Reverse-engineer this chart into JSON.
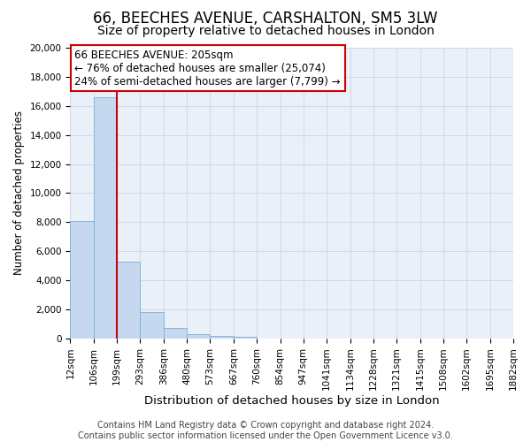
{
  "title": "66, BEECHES AVENUE, CARSHALTON, SM5 3LW",
  "subtitle": "Size of property relative to detached houses in London",
  "xlabel": "Distribution of detached houses by size in London",
  "ylabel": "Number of detached properties",
  "bar_values": [
    8100,
    16600,
    5300,
    1850,
    750,
    280,
    180,
    130,
    0,
    0,
    0,
    0,
    0,
    0,
    0,
    0,
    0,
    0,
    0
  ],
  "bin_labels": [
    "12sqm",
    "106sqm",
    "199sqm",
    "293sqm",
    "386sqm",
    "480sqm",
    "573sqm",
    "667sqm",
    "760sqm",
    "854sqm",
    "947sqm",
    "1041sqm",
    "1134sqm",
    "1228sqm",
    "1321sqm",
    "1415sqm",
    "1508sqm",
    "1602sqm",
    "1695sqm",
    "1882sqm"
  ],
  "bar_color": "#c5d8f0",
  "bar_edge_color": "#7aafd4",
  "vline_color": "#cc0000",
  "annotation_line1": "66 BEECHES AVENUE: 205sqm",
  "annotation_line2": "← 76% of detached houses are smaller (25,074)",
  "annotation_line3": "24% of semi-detached houses are larger (7,799) →",
  "ylim": [
    0,
    20000
  ],
  "yticks": [
    0,
    2000,
    4000,
    6000,
    8000,
    10000,
    12000,
    14000,
    16000,
    18000,
    20000
  ],
  "grid_color": "#d0d8e8",
  "background_color": "#eaf0f8",
  "footer_text": "Contains HM Land Registry data © Crown copyright and database right 2024.\nContains public sector information licensed under the Open Government Licence v3.0.",
  "title_fontsize": 12,
  "subtitle_fontsize": 10,
  "xlabel_fontsize": 9.5,
  "ylabel_fontsize": 8.5,
  "tick_fontsize": 7.5,
  "annotation_fontsize": 8.5,
  "footer_fontsize": 7
}
